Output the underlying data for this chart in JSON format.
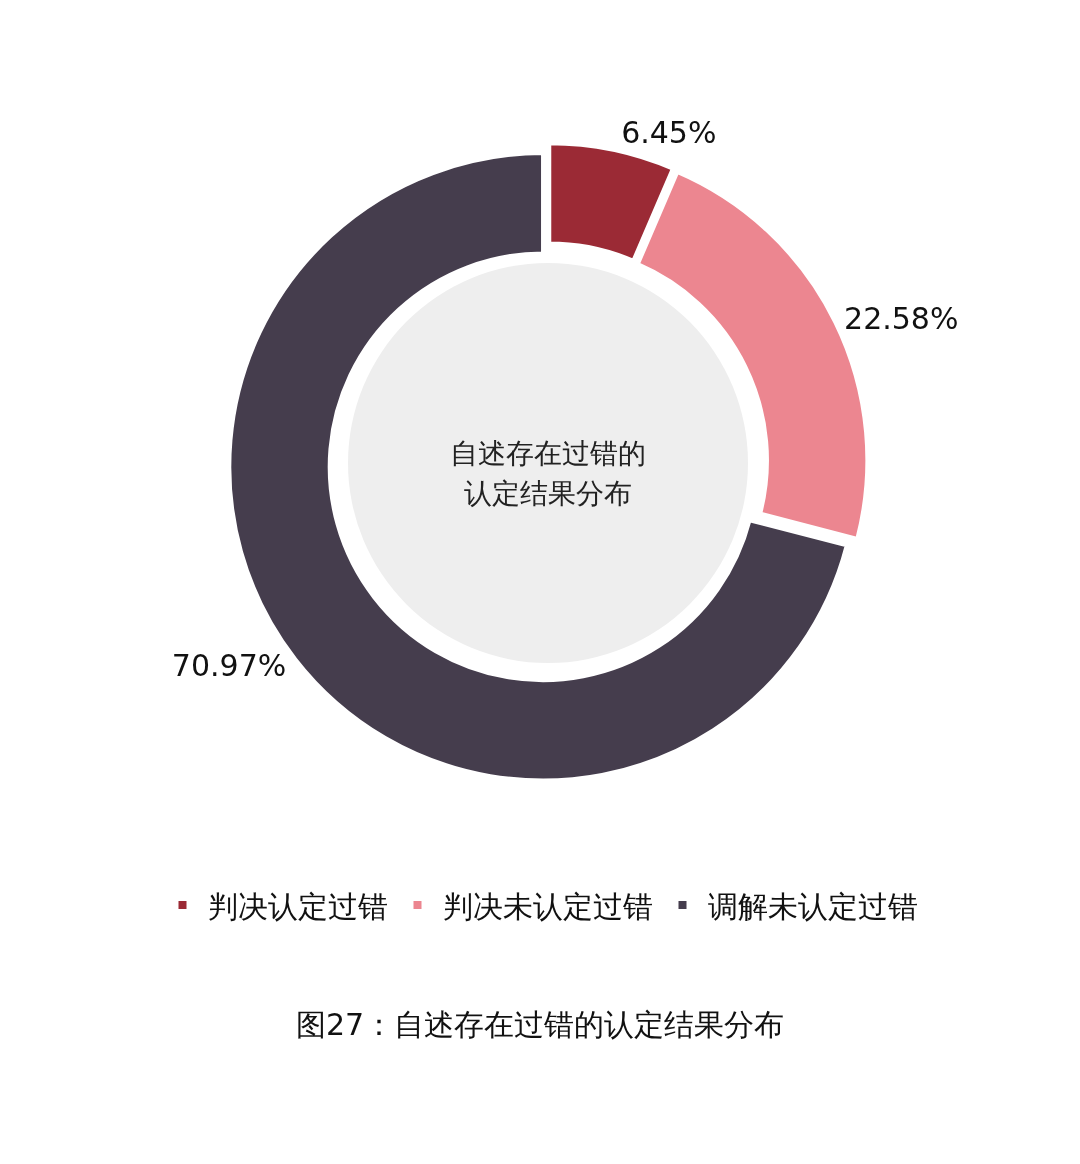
{
  "chart_data": {
    "type": "donut",
    "title": "自述存在过错的",
    "subtitle": "认定结果分布",
    "categories": [
      "判决认定过错",
      "判决未认定过错",
      "调解未认定过错"
    ],
    "values": [
      6.45,
      22.58,
      70.97
    ],
    "colors": [
      "#9b2a35",
      "#ec8690",
      "#453d4d"
    ],
    "value_labels": [
      "6.45%",
      "22.58%",
      "70.97%"
    ],
    "legend": "bottom",
    "annotations": [
      "图27：自述存在过错的认定结果分布"
    ]
  }
}
